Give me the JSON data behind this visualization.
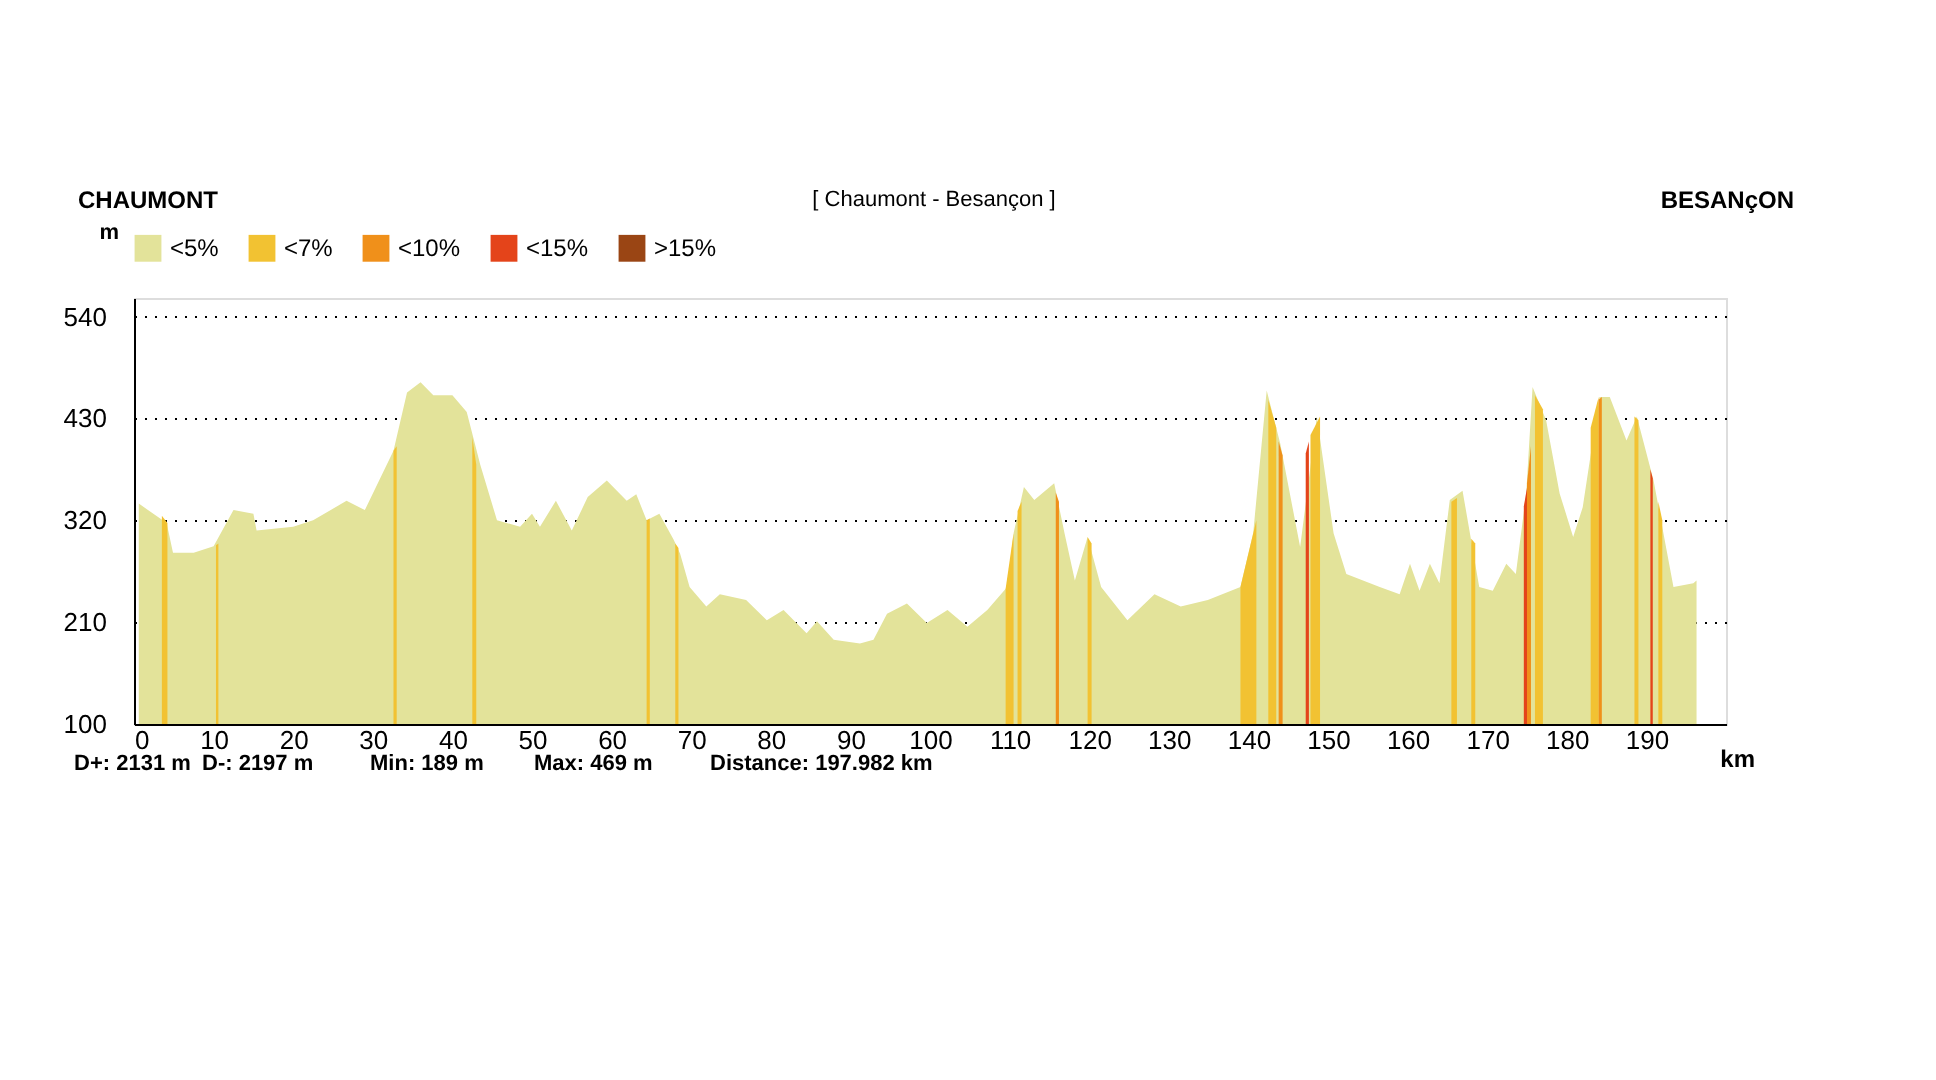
{
  "chart_data": {
    "type": "area",
    "title": "[ Chaumont - Besançon ]",
    "xlabel": "km",
    "ylabel": "m",
    "annotations": [
      "CHAUMONT",
      "BESANçON",
      "D+: 2131 m",
      "D-: 2197 m",
      "Min: 189 m",
      "Max: 469 m",
      "Distance: 197.982 km"
    ],
    "xlim": [
      0,
      200
    ],
    "ylim": [
      100,
      560
    ],
    "xticks": [
      0,
      10,
      20,
      30,
      40,
      50,
      60,
      70,
      80,
      90,
      100,
      110,
      120,
      130,
      140,
      150,
      160,
      170,
      180,
      190
    ],
    "yticks": [
      100,
      210,
      320,
      430,
      540
    ],
    "grid": "y",
    "legend": "top left",
    "series": [
      {
        "name": "<5%",
        "color": "#e3e39a",
        "x": [
          0.6,
          4.1,
          4.9,
          7.5,
          10,
          12.5,
          15,
          15.4,
          20,
          22.5,
          26.7,
          29,
          32.6,
          34.3,
          36,
          37.6,
          40,
          41.8,
          43.5,
          45.6,
          48.5,
          50,
          51,
          53,
          55,
          57,
          59.4,
          61.9,
          63.1,
          64.4,
          66,
          67.8,
          68.6,
          69.8,
          71.9,
          73.6,
          76.9,
          79.5,
          81.6,
          84.5,
          85.8,
          87.9,
          91.2,
          92.9,
          94.6,
          97.1,
          99.6,
          102.2,
          104.7,
          107.2,
          109.7,
          110.5,
          111.8,
          113.1,
          115.6,
          116.9,
          118.2,
          119.8,
          121.5,
          124.8,
          128.2,
          131.5,
          134.9,
          139,
          140.6,
          142.3,
          144,
          146.5,
          148.6,
          150.7,
          152.3,
          156.5,
          159,
          160.3,
          161.5,
          162.8,
          164,
          165.3,
          166.9,
          169,
          170.7,
          172.4,
          173.6,
          174.9,
          175.7,
          177.4,
          179.1,
          180.8,
          182,
          184.1,
          185.4,
          187.5,
          188.8,
          190.9,
          193.4,
          195.9,
          196.3
        ],
        "values": [
          338,
          317,
          285,
          285,
          292,
          331,
          327,
          309,
          313,
          320,
          341,
          331,
          395,
          458,
          469,
          455,
          455,
          437,
          380,
          320,
          313,
          327,
          313,
          341,
          309,
          345,
          363,
          341,
          348,
          320,
          327,
          299,
          284,
          248,
          227,
          240,
          234,
          212,
          223,
          198,
          211,
          191,
          187,
          191,
          219,
          230,
          209,
          223,
          205,
          223,
          248,
          306,
          356,
          342,
          360,
          306,
          255,
          302,
          248,
          212,
          240,
          227,
          234,
          248,
          306,
          460,
          403,
          291,
          432,
          306,
          262,
          248,
          240,
          273,
          244,
          273,
          252,
          342,
          352,
          248,
          244,
          273,
          262,
          349,
          464,
          428,
          349,
          302,
          334,
          453,
          453,
          406,
          432,
          363,
          248,
          252,
          255
        ]
      },
      {
        "name": "<7%",
        "color": "#f2c232",
        "x": [
          3.5,
          4.2,
          null,
          10.3,
          10.6,
          null,
          32.6,
          33,
          null,
          42.5,
          43,
          null,
          64.4,
          64.8,
          null,
          68,
          68.4,
          null,
          109.5,
          110.5,
          null,
          111,
          111.5,
          null,
          119.8,
          120.3,
          null,
          139,
          141,
          null,
          142.5,
          143.5,
          null,
          147.8,
          149,
          null,
          165.5,
          166.2,
          null,
          168,
          168.5,
          null,
          176,
          177,
          null,
          183,
          184,
          null,
          188.5,
          189,
          null,
          191.5,
          192
        ],
        "values": [
          325,
          317,
          null,
          293,
          295,
          null,
          395,
          400,
          null,
          410,
          380,
          null,
          320,
          322,
          null,
          295,
          290,
          null,
          246,
          306,
          null,
          330,
          340,
          null,
          302,
          295,
          null,
          248,
          320,
          null,
          450,
          420,
          null,
          412,
          432,
          null,
          340,
          344,
          null,
          300,
          295,
          null,
          455,
          440,
          null,
          420,
          453,
          null,
          432,
          428,
          null,
          340,
          320
        ]
      },
      {
        "name": "<10%",
        "color": "#f0901a",
        "x": [
          115.8,
          116.2,
          null,
          143.8,
          144.3,
          null,
          175,
          175.5,
          null,
          184,
          184.4
        ],
        "values": [
          350,
          340,
          null,
          405,
          390,
          null,
          360,
          400,
          null,
          450,
          453
        ]
      },
      {
        "name": "<15%",
        "color": "#e4441a",
        "x": [
          147.2,
          147.6,
          null,
          174.6,
          175,
          null,
          190.5,
          190.8
        ],
        "values": [
          392,
          405,
          null,
          335,
          355,
          null,
          375,
          365
        ]
      },
      {
        "name": ">15%",
        "color": "#9a4514"
      }
    ]
  }
}
